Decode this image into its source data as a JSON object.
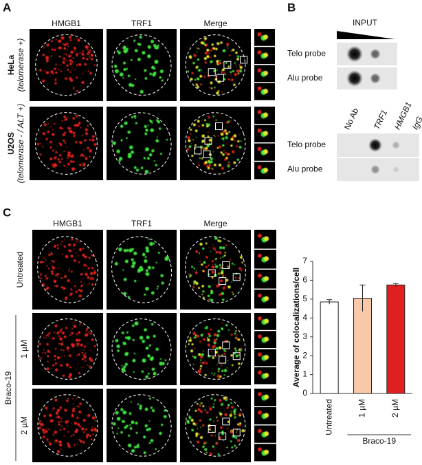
{
  "panel_a": {
    "label": "A",
    "columns": [
      "HMGB1",
      "TRF1",
      "Merge"
    ],
    "rows": [
      {
        "name": "HeLa",
        "note": "(telomerase +)"
      },
      {
        "name": "U2OS",
        "note": "(telomerase - / ALT +)"
      }
    ]
  },
  "panel_b": {
    "label": "B",
    "input_title": "INPUT",
    "input_rows": [
      "Telo probe",
      "Alu probe"
    ],
    "ip_columns": [
      "No Ab",
      "TRF1",
      "HMGB1",
      "IgG"
    ],
    "ip_rows": [
      "Telo probe",
      "Alu probe"
    ]
  },
  "panel_c": {
    "label": "C",
    "columns": [
      "HMGB1",
      "TRF1",
      "Merge"
    ],
    "rows": [
      "Untreated",
      "1 µM",
      "2 µM"
    ],
    "group": "Braco-19"
  },
  "chart_data": {
    "type": "bar",
    "y_label": "Average of colocalizations/cell",
    "categories": [
      "Untreated",
      "1 µM",
      "2 µM"
    ],
    "group_label": "Braco-19",
    "values": [
      4.85,
      5.05,
      5.75
    ],
    "errors": [
      0.12,
      0.7,
      0.08
    ],
    "colors": [
      "#ffffff",
      "#f8c9a8",
      "#e02020"
    ],
    "ylim": [
      0,
      7
    ],
    "yticks": [
      0,
      1,
      2,
      3,
      4,
      5,
      6,
      7
    ]
  }
}
